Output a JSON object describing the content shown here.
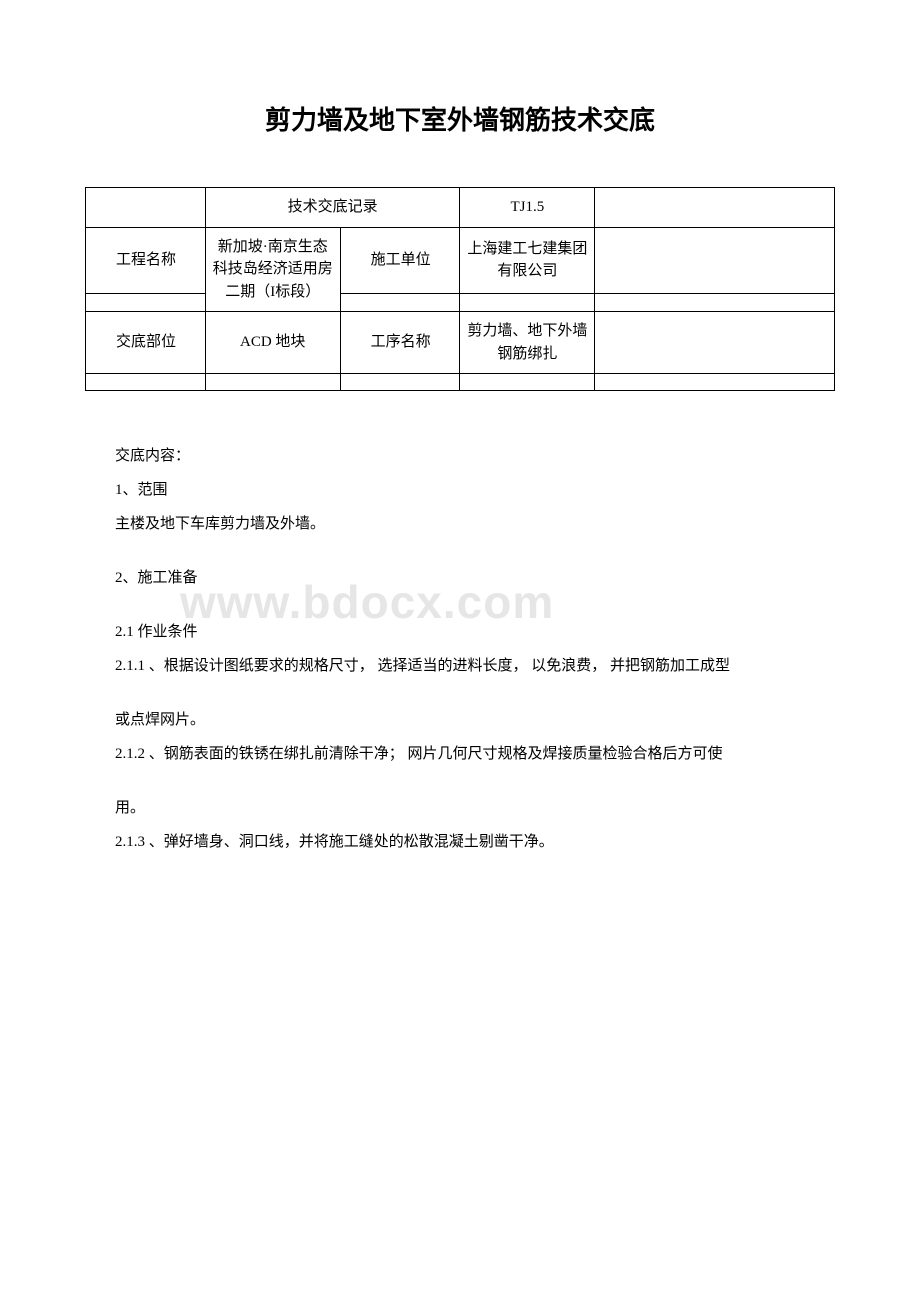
{
  "title": "剪力墙及地下室外墙钢筋技术交底",
  "watermark": "www.bdocx.com",
  "table": {
    "r1c2": "技术交底记录",
    "r1c4": "TJ1.5",
    "r2c1": "工程名称",
    "r2c2": "新加坡·南京生态科技岛经",
    "r2c3": "施工单位",
    "r2c4": "上海建工七建集团有限公司",
    "r3c2": "济适用房二期（I标段）",
    "r4c1": "交底部位",
    "r4c2": "ACD 地块",
    "r4c3": "工序名称",
    "r4c4": "剪力墙、地下外墙钢筋绑扎"
  },
  "body": {
    "p1": "交底内容：",
    "p2": "1、范围",
    "p3": "主楼及地下车库剪力墙及外墙。",
    "p4": "2、施工准备",
    "p5": "2.1 作业条件",
    "p6": "2.1.1 、根据设计图纸要求的规格尺寸， 选择适当的进料长度， 以免浪费， 并把钢筋加工成型",
    "p7": "或点焊网片。",
    "p8": "2.1.2 、钢筋表面的铁锈在绑扎前清除干净； 网片几何尺寸规格及焊接质量检验合格后方可使",
    "p9": "用。",
    "p10": "2.1.3 、弹好墙身、洞口线，并将施工缝处的松散混凝土剔凿干净。"
  },
  "colors": {
    "text": "#000000",
    "background": "#ffffff",
    "border": "#000000",
    "watermark": "#e6e6e6"
  }
}
